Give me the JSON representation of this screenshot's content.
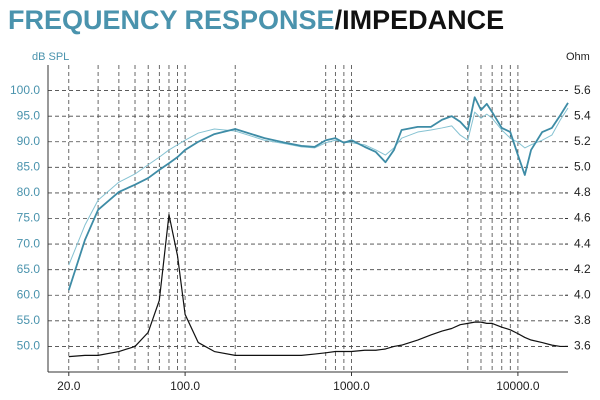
{
  "chart_data": {
    "type": "line",
    "title_parts": [
      "FREQUENCY RESPONSE",
      "/IMPEDANCE"
    ],
    "title_colors": [
      "#4a93ad",
      "#111111"
    ],
    "ylabel": "dB SPL",
    "y2label": "Ohm",
    "xscale": "log",
    "xlim": [
      15,
      20000
    ],
    "ylim": [
      45,
      105
    ],
    "y2lim": [
      3.4,
      5.8
    ],
    "xticks": [
      {
        "value": 20,
        "label": "20.0"
      },
      {
        "value": 100,
        "label": "100.0"
      },
      {
        "value": 1000,
        "label": "1000.0"
      },
      {
        "value": 10000,
        "label": "10000.0"
      }
    ],
    "xgrid": [
      20,
      30,
      40,
      50,
      60,
      70,
      80,
      90,
      100,
      200,
      700,
      800,
      900,
      1000,
      5000,
      6000,
      7000,
      8000,
      9000,
      10000
    ],
    "yticks": [
      {
        "value": 50,
        "label": "50.0"
      },
      {
        "value": 55,
        "label": "55.0"
      },
      {
        "value": 60,
        "label": "60.0"
      },
      {
        "value": 65,
        "label": "65.0"
      },
      {
        "value": 70,
        "label": "70.0"
      },
      {
        "value": 75,
        "label": "75.0"
      },
      {
        "value": 80,
        "label": "80.0"
      },
      {
        "value": 85,
        "label": "85.0"
      },
      {
        "value": 90,
        "label": "90.0"
      },
      {
        "value": 95,
        "label": "95.0"
      },
      {
        "value": 100,
        "label": "100.0"
      }
    ],
    "y2ticks": [
      3.6,
      3.8,
      {
        "value": 4,
        "label": "4.0"
      },
      4.2,
      4.4,
      4.6,
      4.8,
      {
        "value": 5,
        "label": "5.0"
      },
      5.2,
      5.4,
      5.6
    ],
    "grid": true,
    "x": [
      20,
      25,
      30,
      40,
      50,
      60,
      70,
      80,
      90,
      100,
      120,
      150,
      200,
      300,
      400,
      500,
      600,
      700,
      800,
      900,
      1000,
      1200,
      1400,
      1600,
      1800,
      2000,
      2500,
      3000,
      3500,
      4000,
      4500,
      5000,
      5500,
      6000,
      6500,
      7000,
      8000,
      9000,
      10000,
      11000,
      12000,
      14000,
      16000,
      18000,
      20000
    ],
    "series": [
      {
        "color": "#85c2d2",
        "width": 1,
        "values": [
          65.9,
          73.7,
          78.6,
          82.1,
          83.7,
          85.5,
          87,
          88.4,
          89.4,
          90.3,
          91.7,
          92.5,
          92.1,
          90.3,
          89.6,
          89,
          88.8,
          89.8,
          90.3,
          89.9,
          89.8,
          89.4,
          88.4,
          87.4,
          88.8,
          90.7,
          91.9,
          92.3,
          92.7,
          93.1,
          91.3,
          90.3,
          95.8,
          94.6,
          95.4,
          94.6,
          92.3,
          90.7,
          89.9,
          88.8,
          89.4,
          90.3,
          91.3,
          94.3,
          96.6
        ]
      },
      {
        "color": "#3e8ca6",
        "width": 1.8,
        "values": [
          61,
          70.8,
          76.7,
          80.2,
          81.6,
          82.9,
          84.5,
          85.8,
          87,
          88.4,
          90,
          91.5,
          92.5,
          90.7,
          89.8,
          89.2,
          89,
          90.3,
          90.7,
          89.8,
          90.3,
          89,
          88,
          86,
          88.4,
          92.3,
          92.9,
          92.9,
          94.3,
          95,
          93.9,
          92.3,
          98.7,
          96.2,
          97.4,
          95.8,
          92.7,
          91.9,
          87.4,
          83.5,
          88.4,
          91.9,
          92.7,
          95.2,
          97.6
        ]
      },
      {
        "color": "#111111",
        "width": 1.2,
        "axis": "y2",
        "values": [
          3.52,
          3.53,
          3.53,
          3.56,
          3.6,
          3.71,
          3.96,
          4.63,
          4.31,
          3.85,
          3.63,
          3.56,
          3.53,
          3.53,
          3.53,
          3.53,
          3.54,
          3.55,
          3.56,
          3.56,
          3.56,
          3.57,
          3.57,
          3.58,
          3.6,
          3.61,
          3.65,
          3.69,
          3.72,
          3.74,
          3.77,
          3.78,
          3.79,
          3.79,
          3.78,
          3.78,
          3.75,
          3.73,
          3.7,
          3.67,
          3.65,
          3.63,
          3.61,
          3.6,
          3.6
        ]
      }
    ]
  }
}
